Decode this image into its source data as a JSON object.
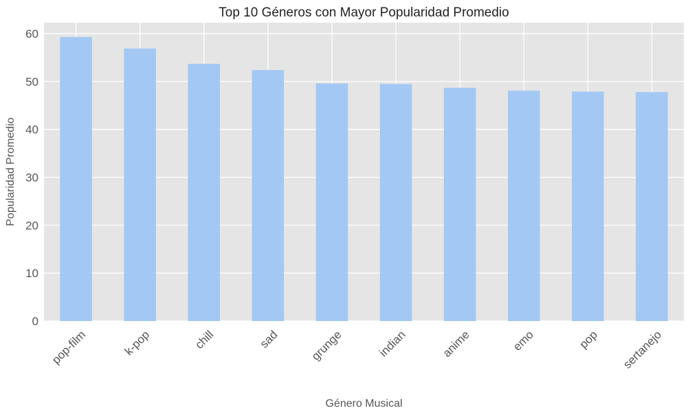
{
  "chart_data": {
    "type": "bar",
    "title": "Top 10 Géneros con Mayor Popularidad Promedio",
    "xlabel": "Género Musical",
    "ylabel": "Popularidad Promedio",
    "categories": [
      "pop-film",
      "k-pop",
      "chill",
      "sad",
      "grunge",
      "indian",
      "anime",
      "emo",
      "pop",
      "sertanejo"
    ],
    "values": [
      59.3,
      56.9,
      53.7,
      52.4,
      49.6,
      49.5,
      48.7,
      48.1,
      47.9,
      47.8
    ],
    "ylim": [
      0,
      62.3
    ],
    "yticks": [
      0,
      10,
      20,
      30,
      40,
      50,
      60
    ],
    "grid": true,
    "legend": "none",
    "colors": {
      "bar": "#a3c8f3",
      "plot_background": "#e5e5e5",
      "grid": "#ffffff",
      "text": "#555555",
      "title": "#222222"
    }
  }
}
